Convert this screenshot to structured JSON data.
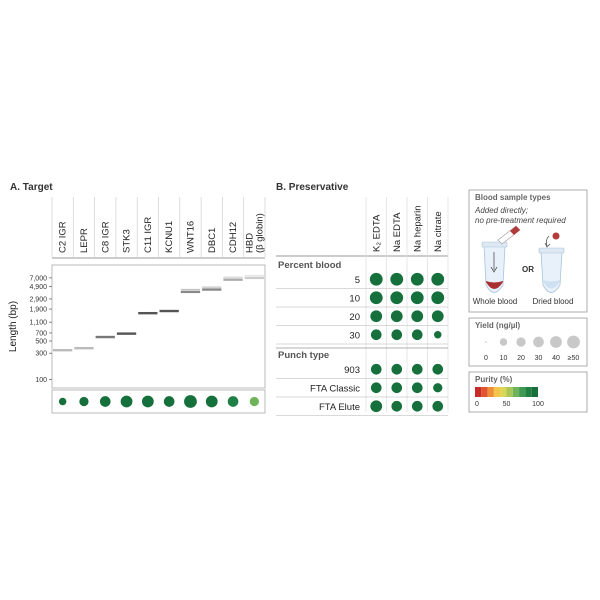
{
  "chart_data": [
    {
      "type": "gel",
      "title": "A. Target",
      "ylabel": "Length (bp)",
      "yscale": "log",
      "ylim": [
        70,
        12000
      ],
      "yticks": [
        {
          "value": 7000,
          "label": "7,000"
        },
        {
          "value": 4900,
          "label": "4,900"
        },
        {
          "value": 2900,
          "label": "2,900"
        },
        {
          "value": 1900,
          "label": "1,900"
        },
        {
          "value": 1100,
          "label": "1,100"
        },
        {
          "value": 700,
          "label": "700"
        },
        {
          "value": 500,
          "label": "500"
        },
        {
          "value": 300,
          "label": "300"
        },
        {
          "value": 100,
          "label": "100"
        }
      ],
      "categories": [
        "C2 IGR",
        "LEPR",
        "C8 IGR",
        "STK3",
        "C11 IGR",
        "KCNU1",
        "WNT16",
        "DBC1",
        "CDH12",
        "HBD\n(β globin)"
      ],
      "band_length_bp": [
        340,
        370,
        590,
        680,
        1600,
        1750,
        3900,
        4300,
        6500,
        7000
      ],
      "band_color": [
        "#bbbbbb",
        "#bbbbbb",
        "#777777",
        "#555555",
        "#555555",
        "#555555",
        "#888888",
        "#888888",
        "#aaaaaa",
        "#cccccc"
      ],
      "yield_ng_per_ul": [
        10,
        20,
        30,
        40,
        40,
        30,
        50,
        40,
        30,
        20
      ],
      "purity_percent": [
        100,
        100,
        100,
        100,
        100,
        100,
        100,
        100,
        85,
        70
      ]
    },
    {
      "type": "dot_matrix",
      "title": "B. Preservative",
      "columns": [
        "K₂ EDTA",
        "Na EDTA",
        "Na heparin",
        "Na citrate"
      ],
      "groups": [
        {
          "title": "Percent blood",
          "rows": [
            {
              "label": "5",
              "yield_ng_per_ul": [
                50,
                50,
                50,
                50
              ],
              "purity_percent": [
                100,
                100,
                100,
                100
              ]
            },
            {
              "label": "10",
              "yield_ng_per_ul": [
                50,
                50,
                50,
                50
              ],
              "purity_percent": [
                100,
                100,
                100,
                100
              ]
            },
            {
              "label": "20",
              "yield_ng_per_ul": [
                40,
                40,
                40,
                40
              ],
              "purity_percent": [
                100,
                100,
                100,
                100
              ]
            },
            {
              "label": "30",
              "yield_ng_per_ul": [
                30,
                30,
                30,
                10
              ],
              "purity_percent": [
                100,
                100,
                100,
                100
              ]
            }
          ]
        },
        {
          "title": "Punch type",
          "rows": [
            {
              "label": "903",
              "yield_ng_per_ul": [
                30,
                30,
                30,
                30
              ],
              "purity_percent": [
                100,
                100,
                100,
                100
              ]
            },
            {
              "label": "FTA Classic",
              "yield_ng_per_ul": [
                30,
                30,
                30,
                20
              ],
              "purity_percent": [
                100,
                100,
                100,
                100
              ]
            },
            {
              "label": "FTA Elute",
              "yield_ng_per_ul": [
                40,
                30,
                30,
                30
              ],
              "purity_percent": [
                100,
                100,
                100,
                100
              ]
            }
          ]
        }
      ]
    }
  ],
  "legend": {
    "sample_types": {
      "title": "Blood sample types",
      "subtitle_line1": "Added directly;",
      "subtitle_line2": "no pre-treatment required",
      "whole_label": "Whole blood",
      "or_label": "OR",
      "dried_label": "Dried blood"
    },
    "yield": {
      "title": "Yield (ng/µl)",
      "levels": [
        0,
        10,
        20,
        30,
        40,
        50
      ],
      "labels": [
        "0",
        "10",
        "20",
        "30",
        "40",
        "≥50"
      ]
    },
    "purity": {
      "title": "Purity (%)",
      "colors": [
        "#c62a2a",
        "#e0552b",
        "#ee8e3a",
        "#f3c64a",
        "#d9d65a",
        "#a6c75a",
        "#6eb35a",
        "#3e9a52",
        "#1f7f45",
        "#15703c"
      ],
      "tick_labels": [
        "0",
        "50",
        "100"
      ]
    }
  },
  "colors": {
    "dot_default": "#1e7a44",
    "grid": "#d0d0d0",
    "frame": "#999999"
  }
}
